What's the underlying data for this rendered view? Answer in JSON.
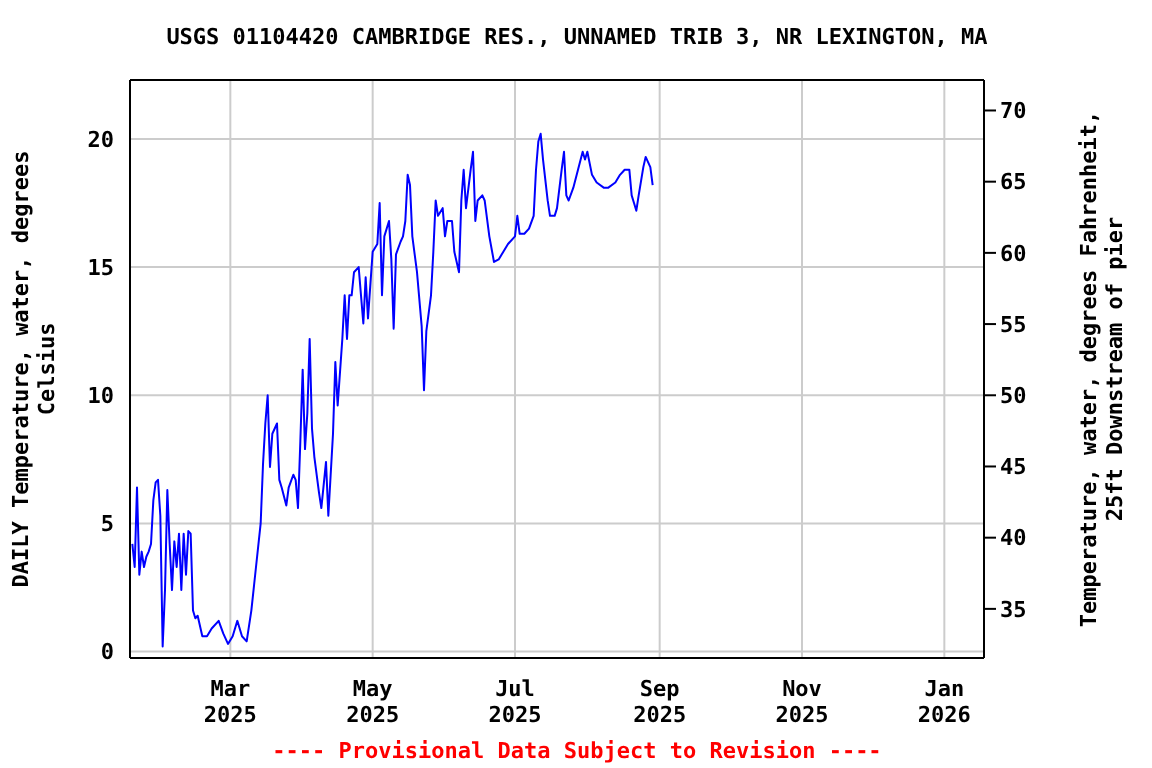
{
  "chart_data": {
    "type": "line",
    "title": "USGS 01104420 CAMBRIDGE RES., UNNAMED TRIB 3, NR LEXINGTON, MA",
    "ylabel": "DAILY Temperature, water, degrees Celsius",
    "y2label": "Temperature, water, degrees Fahrenheit, 25ft Downstream of pier",
    "annotations": [
      "---- Provisional Data Subject to Revision ----"
    ],
    "x": [
      "2025-01-18",
      "2025-01-19",
      "2025-01-20",
      "2025-01-21",
      "2025-01-22",
      "2025-01-23",
      "2025-01-24",
      "2025-01-25",
      "2025-01-26",
      "2025-01-27",
      "2025-01-28",
      "2025-01-29",
      "2025-01-30",
      "2025-01-31",
      "2025-02-01",
      "2025-02-02",
      "2025-02-03",
      "2025-02-04",
      "2025-02-05",
      "2025-02-06",
      "2025-02-07",
      "2025-02-08",
      "2025-02-09",
      "2025-02-10",
      "2025-02-11",
      "2025-02-12",
      "2025-02-13",
      "2025-02-14",
      "2025-02-15",
      "2025-02-17",
      "2025-02-19",
      "2025-02-21",
      "2025-02-24",
      "2025-02-26",
      "2025-02-28",
      "2025-03-02",
      "2025-03-04",
      "2025-03-06",
      "2025-03-08",
      "2025-03-10",
      "2025-03-12",
      "2025-03-14",
      "2025-03-15",
      "2025-03-16",
      "2025-03-17",
      "2025-03-18",
      "2025-03-19",
      "2025-03-21",
      "2025-03-22",
      "2025-03-23",
      "2025-03-25",
      "2025-03-26",
      "2025-03-28",
      "2025-03-29",
      "2025-03-30",
      "2025-03-31",
      "2025-04-01",
      "2025-04-02",
      "2025-04-03",
      "2025-04-04",
      "2025-04-05",
      "2025-04-06",
      "2025-04-08",
      "2025-04-09",
      "2025-04-11",
      "2025-04-12",
      "2025-04-14",
      "2025-04-15",
      "2025-04-16",
      "2025-04-18",
      "2025-04-19",
      "2025-04-20",
      "2025-04-21",
      "2025-04-22",
      "2025-04-23",
      "2025-04-25",
      "2025-04-26",
      "2025-04-27",
      "2025-04-28",
      "2025-04-29",
      "2025-05-01",
      "2025-05-03",
      "2025-05-04",
      "2025-05-05",
      "2025-05-06",
      "2025-05-08",
      "2025-05-09",
      "2025-05-10",
      "2025-05-11",
      "2025-05-13",
      "2025-05-14",
      "2025-05-15",
      "2025-05-16",
      "2025-05-17",
      "2025-05-18",
      "2025-05-20",
      "2025-05-22",
      "2025-05-23",
      "2025-05-24",
      "2025-05-26",
      "2025-05-27",
      "2025-05-28",
      "2025-05-29",
      "2025-05-31",
      "2025-06-01",
      "2025-06-02",
      "2025-06-04",
      "2025-06-05",
      "2025-06-07",
      "2025-06-08",
      "2025-06-09",
      "2025-06-10",
      "2025-06-12",
      "2025-06-13",
      "2025-06-14",
      "2025-06-15",
      "2025-06-17",
      "2025-06-18",
      "2025-06-20",
      "2025-06-22",
      "2025-06-24",
      "2025-06-26",
      "2025-06-28",
      "2025-07-01",
      "2025-07-02",
      "2025-07-03",
      "2025-07-05",
      "2025-07-07",
      "2025-07-09",
      "2025-07-10",
      "2025-07-11",
      "2025-07-12",
      "2025-07-13",
      "2025-07-15",
      "2025-07-16",
      "2025-07-18",
      "2025-07-19",
      "2025-07-21",
      "2025-07-22",
      "2025-07-23",
      "2025-07-24",
      "2025-07-26",
      "2025-07-28",
      "2025-07-30",
      "2025-07-31",
      "2025-08-01",
      "2025-08-03",
      "2025-08-05",
      "2025-08-08",
      "2025-08-10",
      "2025-08-13",
      "2025-08-15",
      "2025-08-17",
      "2025-08-19",
      "2025-08-20",
      "2025-08-21",
      "2025-08-22",
      "2025-08-23",
      "2025-08-25",
      "2025-08-26",
      "2025-08-28",
      "2025-08-29"
    ],
    "series": [
      {
        "color": "#0000ff",
        "values": [
          4.2,
          3.3,
          6.4,
          3.0,
          3.9,
          3.3,
          3.7,
          3.9,
          4.2,
          5.9,
          6.6,
          6.7,
          5.3,
          0.2,
          2.4,
          6.3,
          4.2,
          2.4,
          4.3,
          3.3,
          4.6,
          2.4,
          4.6,
          3.0,
          4.7,
          4.6,
          1.6,
          1.3,
          1.4,
          0.6,
          0.6,
          0.9,
          1.2,
          0.7,
          0.3,
          0.6,
          1.2,
          0.6,
          0.4,
          1.6,
          3.3,
          5.0,
          7.3,
          8.9,
          10.0,
          7.2,
          8.5,
          8.9,
          6.7,
          6.4,
          5.7,
          6.4,
          6.9,
          6.7,
          5.6,
          8.2,
          11.0,
          7.9,
          9.3,
          12.2,
          8.7,
          7.6,
          6.2,
          5.6,
          7.4,
          5.3,
          8.5,
          11.3,
          9.6,
          12.2,
          13.9,
          12.2,
          13.9,
          13.9,
          14.8,
          15.0,
          13.9,
          12.8,
          14.6,
          13.0,
          15.6,
          15.9,
          17.5,
          13.9,
          16.2,
          16.8,
          15.3,
          12.6,
          15.5,
          16.0,
          16.2,
          16.8,
          18.6,
          18.2,
          16.2,
          14.8,
          12.7,
          10.2,
          12.5,
          13.9,
          15.6,
          17.6,
          17.0,
          17.3,
          16.2,
          16.8,
          16.8,
          15.6,
          14.8,
          17.6,
          18.8,
          17.3,
          18.8,
          19.5,
          16.8,
          17.6,
          17.8,
          17.6,
          16.2,
          15.2,
          15.3,
          15.6,
          15.9,
          16.2,
          17.0,
          16.3,
          16.3,
          16.5,
          17.0,
          18.8,
          19.9,
          20.2,
          19.2,
          17.6,
          17.0,
          17.0,
          17.3,
          18.8,
          19.5,
          17.8,
          17.6,
          18.1,
          18.8,
          19.5,
          19.2,
          19.5,
          18.6,
          18.3,
          18.1,
          18.1,
          18.3,
          18.6,
          18.8,
          18.8,
          17.8,
          17.5,
          17.2,
          17.8,
          18.9,
          19.3,
          18.9,
          18.2
        ]
      }
    ],
    "xlim": [
      "2025-01-17",
      "2026-01-18"
    ],
    "xticks": [
      {
        "value": "2025-03-01",
        "label": "Mar\n2025"
      },
      {
        "value": "2025-05-01",
        "label": "May\n2025"
      },
      {
        "value": "2025-07-01",
        "label": "Jul\n2025"
      },
      {
        "value": "2025-09-01",
        "label": "Sep\n2025"
      },
      {
        "value": "2025-11-01",
        "label": "Nov\n2025"
      },
      {
        "value": "2026-01-01",
        "label": "Jan\n2026"
      }
    ],
    "ylim": [
      -0.25,
      22.3
    ],
    "yticks": [
      0,
      5,
      10,
      15,
      20
    ],
    "y2lim": [
      31.55,
      72.14
    ],
    "y2ticks": [
      35,
      40,
      45,
      50,
      55,
      60,
      65,
      70
    ],
    "grid": true,
    "marker": "none",
    "line_style": "solid"
  }
}
